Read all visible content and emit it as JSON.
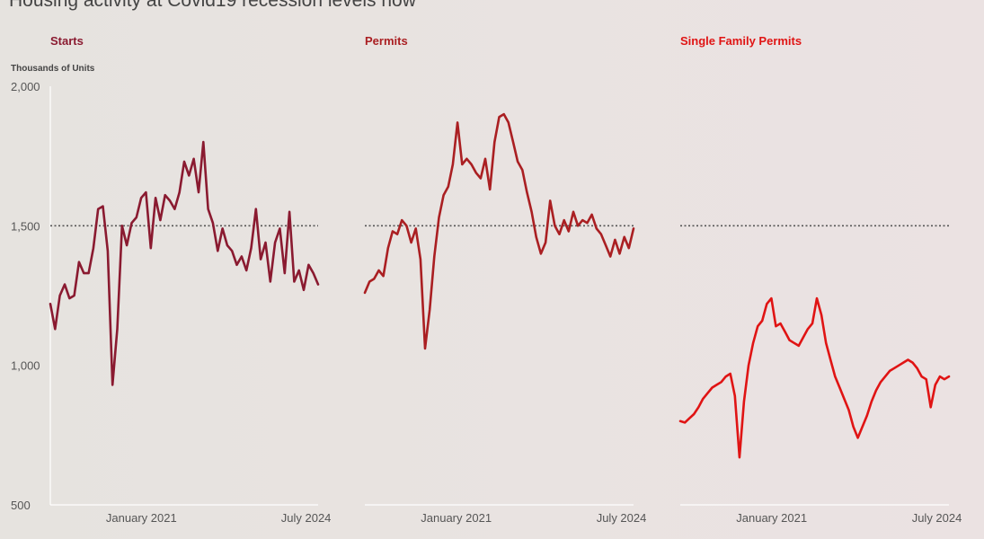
{
  "title": "Housing activity at Covid19 recession levels now",
  "chart_data": {
    "type": "line",
    "ylabel": "Thousands of Units",
    "ylim": [
      500,
      2000
    ],
    "yticks": [
      "2,000",
      "1,500",
      "1,000",
      "500"
    ],
    "reference_line": 1500,
    "xticks": [
      "January 2021",
      "July 2024"
    ],
    "colors": {
      "Starts": "#8a1a30",
      "Permits": "#aa1f22",
      "Single Family Permits": "#e01414",
      "reference": "#555555"
    },
    "panels": [
      {
        "name": "Starts",
        "values": [
          1220,
          1130,
          1250,
          1290,
          1240,
          1250,
          1370,
          1330,
          1330,
          1420,
          1560,
          1570,
          1410,
          930,
          1130,
          1500,
          1430,
          1510,
          1530,
          1600,
          1620,
          1420,
          1600,
          1520,
          1610,
          1590,
          1560,
          1620,
          1730,
          1680,
          1740,
          1620,
          1800,
          1560,
          1510,
          1410,
          1490,
          1430,
          1410,
          1360,
          1390,
          1340,
          1420,
          1560,
          1380,
          1440,
          1300,
          1440,
          1490,
          1330,
          1550,
          1300,
          1340,
          1270,
          1360,
          1330,
          1290
        ]
      },
      {
        "name": "Permits",
        "values": [
          1260,
          1300,
          1310,
          1340,
          1320,
          1420,
          1480,
          1470,
          1520,
          1500,
          1440,
          1490,
          1380,
          1060,
          1200,
          1390,
          1530,
          1610,
          1640,
          1720,
          1870,
          1720,
          1740,
          1720,
          1690,
          1670,
          1740,
          1630,
          1800,
          1890,
          1900,
          1870,
          1800,
          1730,
          1700,
          1620,
          1550,
          1460,
          1400,
          1440,
          1590,
          1500,
          1470,
          1520,
          1480,
          1550,
          1500,
          1520,
          1510,
          1540,
          1490,
          1470,
          1430,
          1390,
          1450,
          1400,
          1460,
          1420,
          1490
        ]
      },
      {
        "name": "Single Family Permits",
        "values": [
          800,
          795,
          810,
          825,
          850,
          880,
          900,
          920,
          930,
          940,
          960,
          970,
          890,
          670,
          870,
          1000,
          1080,
          1140,
          1160,
          1220,
          1240,
          1140,
          1150,
          1120,
          1090,
          1080,
          1070,
          1100,
          1130,
          1150,
          1240,
          1180,
          1080,
          1020,
          960,
          920,
          880,
          840,
          780,
          740,
          780,
          820,
          870,
          910,
          940,
          960,
          980,
          990,
          1000,
          1010,
          1020,
          1010,
          990,
          960,
          950,
          850,
          930,
          960,
          950,
          960
        ]
      }
    ]
  }
}
